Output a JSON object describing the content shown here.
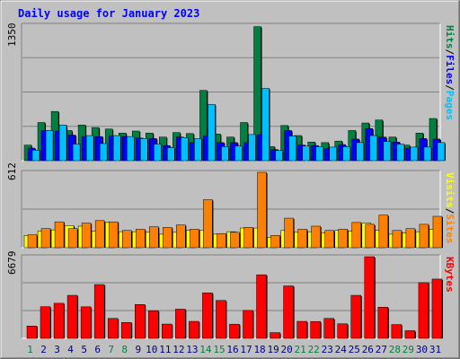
{
  "chart_data": [
    {
      "type": "bar",
      "panel": "hits-files-pages",
      "title": "Daily usage for January 2023",
      "ymax_label": "1350",
      "ylim": [
        0,
        1350
      ],
      "categories": [
        "1",
        "2",
        "3",
        "4",
        "5",
        "6",
        "7",
        "8",
        "9",
        "10",
        "11",
        "12",
        "13",
        "14",
        "15",
        "16",
        "17",
        "18",
        "19",
        "20",
        "21",
        "22",
        "23",
        "24",
        "25",
        "26",
        "27",
        "28",
        "29",
        "30",
        "31"
      ],
      "series": [
        {
          "name": "Hits",
          "color": "#008040",
          "values": [
            155,
            380,
            490,
            300,
            355,
            330,
            315,
            275,
            295,
            275,
            235,
            280,
            270,
            700,
            265,
            235,
            380,
            1335,
            140,
            350,
            250,
            185,
            180,
            195,
            300,
            375,
            405,
            235,
            155,
            275,
            420
          ]
        },
        {
          "name": "Files",
          "color": "#0000ff",
          "values": [
            125,
            300,
            295,
            255,
            240,
            240,
            245,
            240,
            225,
            220,
            150,
            235,
            180,
            245,
            180,
            180,
            180,
            260,
            110,
            300,
            155,
            150,
            120,
            160,
            215,
            320,
            235,
            185,
            125,
            220,
            215
          ]
        },
        {
          "name": "Pages",
          "color": "#00c0ff",
          "values": [
            105,
            300,
            355,
            165,
            250,
            170,
            250,
            240,
            220,
            165,
            130,
            230,
            220,
            560,
            140,
            145,
            260,
            720,
            100,
            245,
            145,
            140,
            135,
            140,
            180,
            250,
            190,
            165,
            135,
            135,
            180
          ]
        }
      ],
      "right_labels": [
        "Pages",
        "Files",
        "Hits"
      ],
      "right_colors": [
        "#00c0ff",
        "#0000ff",
        "#008040"
      ]
    },
    {
      "type": "bar",
      "panel": "visits-sites",
      "ymax_label": "612",
      "ylim": [
        0,
        612
      ],
      "categories": [
        "1",
        "2",
        "3",
        "4",
        "5",
        "6",
        "7",
        "8",
        "9",
        "10",
        "11",
        "12",
        "13",
        "14",
        "15",
        "16",
        "17",
        "18",
        "19",
        "20",
        "21",
        "22",
        "23",
        "24",
        "25",
        "26",
        "27",
        "28",
        "29",
        "30",
        "31"
      ],
      "series": [
        {
          "name": "Visits",
          "color": "#ffff00",
          "values": [
            100,
            135,
            145,
            180,
            175,
            135,
            205,
            130,
            130,
            125,
            110,
            125,
            140,
            140,
            110,
            130,
            160,
            160,
            85,
            140,
            125,
            130,
            120,
            140,
            135,
            200,
            140,
            110,
            120,
            130,
            150
          ]
        },
        {
          "name": "Sites",
          "color": "#ff8000",
          "values": [
            105,
            155,
            210,
            155,
            200,
            220,
            210,
            140,
            150,
            170,
            165,
            185,
            150,
            390,
            115,
            125,
            165,
            612,
            100,
            240,
            150,
            175,
            140,
            150,
            205,
            190,
            265,
            140,
            155,
            190,
            255
          ]
        }
      ],
      "right_labels": [
        "Sites",
        "Visits"
      ],
      "right_colors": [
        "#ff8000",
        "#ffff00"
      ]
    },
    {
      "type": "bar",
      "panel": "kbytes",
      "ymax_label": "6679",
      "ylim": [
        0,
        6679
      ],
      "categories": [
        "1",
        "2",
        "3",
        "4",
        "5",
        "6",
        "7",
        "8",
        "9",
        "10",
        "11",
        "12",
        "13",
        "14",
        "15",
        "16",
        "17",
        "18",
        "19",
        "20",
        "21",
        "22",
        "23",
        "24",
        "25",
        "26",
        "27",
        "28",
        "29",
        "30",
        "31"
      ],
      "series": [
        {
          "name": "KBytes",
          "color": "#ff0000",
          "values": [
            1010,
            2590,
            2870,
            3520,
            2580,
            4400,
            1630,
            1300,
            2770,
            2260,
            1170,
            2390,
            1390,
            3720,
            3100,
            1160,
            2280,
            5200,
            470,
            4290,
            1390,
            1380,
            1630,
            1190,
            3520,
            6679,
            2550,
            1130,
            630,
            4560,
            4850
          ]
        }
      ],
      "right_labels": [
        "KBytes"
      ],
      "right_colors": [
        "#ff0000"
      ]
    }
  ],
  "x_axis": {
    "labels": [
      "1",
      "2",
      "3",
      "4",
      "5",
      "6",
      "7",
      "8",
      "9",
      "10",
      "11",
      "12",
      "13",
      "14",
      "15",
      "16",
      "17",
      "18",
      "19",
      "20",
      "21",
      "22",
      "23",
      "24",
      "25",
      "26",
      "27",
      "28",
      "29",
      "30",
      "31"
    ],
    "weekend_days": [
      "1",
      "7",
      "8",
      "14",
      "15",
      "21",
      "22",
      "28",
      "29"
    ],
    "color_weekday": "#000080",
    "color_weekend": "#008040"
  },
  "colors": {
    "title": "#0000ff",
    "background": "#c0c0c0",
    "panel_bg": "#c0c0c0",
    "gridline": "#808080"
  }
}
